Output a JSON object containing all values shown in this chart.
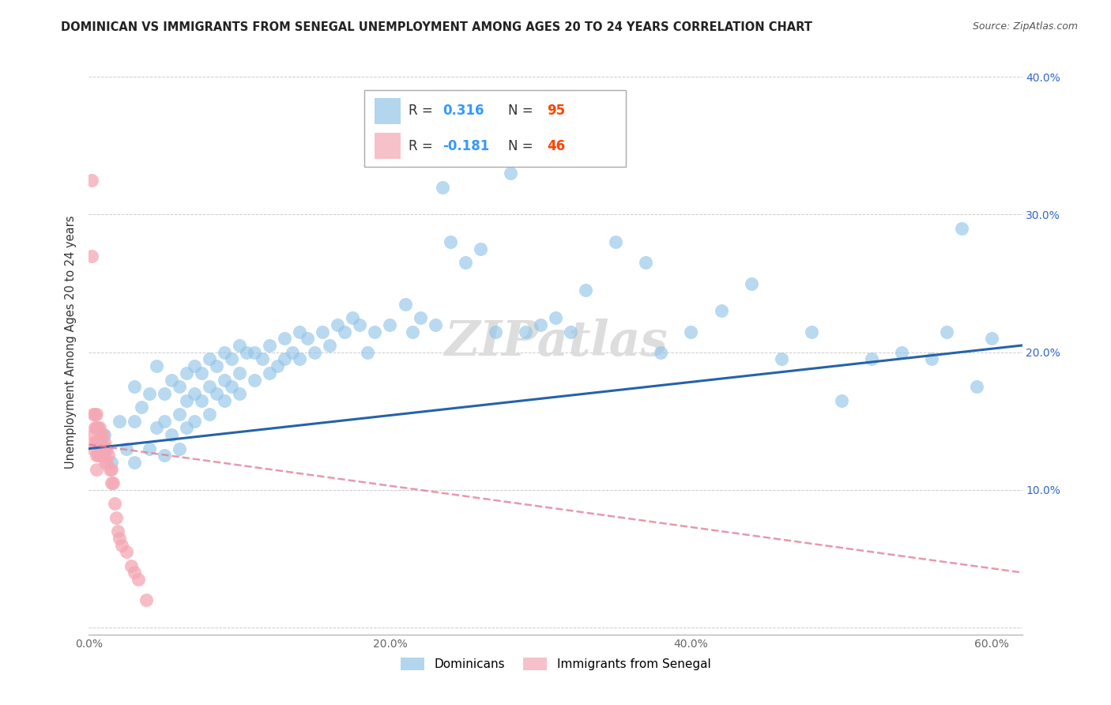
{
  "title": "DOMINICAN VS IMMIGRANTS FROM SENEGAL UNEMPLOYMENT AMONG AGES 20 TO 24 YEARS CORRELATION CHART",
  "source": "Source: ZipAtlas.com",
  "ylabel": "Unemployment Among Ages 20 to 24 years",
  "xlim": [
    0.0,
    0.62
  ],
  "ylim": [
    -0.005,
    0.42
  ],
  "xticks": [
    0.0,
    0.1,
    0.2,
    0.3,
    0.4,
    0.5,
    0.6
  ],
  "yticks": [
    0.0,
    0.1,
    0.2,
    0.3,
    0.4
  ],
  "xticklabels": [
    "0.0%",
    "",
    "20.0%",
    "",
    "40.0%",
    "",
    "60.0%"
  ],
  "yticklabels": [
    "",
    "",
    "",
    "",
    ""
  ],
  "right_yticks": [
    0.1,
    0.2,
    0.3,
    0.4
  ],
  "right_yticklabels": [
    "10.0%",
    "20.0%",
    "30.0%",
    "40.0%"
  ],
  "dominicans_R": 0.316,
  "dominicans_N": 95,
  "senegal_R": -0.181,
  "senegal_N": 46,
  "blue_color": "#92C5E8",
  "pink_color": "#F4A7B4",
  "blue_line_color": "#2563a8",
  "pink_line_color": "#E08098",
  "watermark": "ZIPatlas",
  "blue_scatter_x": [
    0.01,
    0.015,
    0.02,
    0.025,
    0.03,
    0.03,
    0.03,
    0.035,
    0.04,
    0.04,
    0.045,
    0.045,
    0.05,
    0.05,
    0.05,
    0.055,
    0.055,
    0.06,
    0.06,
    0.06,
    0.065,
    0.065,
    0.065,
    0.07,
    0.07,
    0.07,
    0.075,
    0.075,
    0.08,
    0.08,
    0.08,
    0.085,
    0.085,
    0.09,
    0.09,
    0.09,
    0.095,
    0.095,
    0.1,
    0.1,
    0.1,
    0.105,
    0.11,
    0.11,
    0.115,
    0.12,
    0.12,
    0.125,
    0.13,
    0.13,
    0.135,
    0.14,
    0.14,
    0.145,
    0.15,
    0.155,
    0.16,
    0.165,
    0.17,
    0.175,
    0.18,
    0.185,
    0.19,
    0.2,
    0.21,
    0.215,
    0.22,
    0.23,
    0.235,
    0.24,
    0.25,
    0.26,
    0.27,
    0.28,
    0.29,
    0.3,
    0.31,
    0.32,
    0.33,
    0.35,
    0.37,
    0.38,
    0.4,
    0.42,
    0.44,
    0.46,
    0.48,
    0.5,
    0.52,
    0.54,
    0.56,
    0.57,
    0.58,
    0.59,
    0.6
  ],
  "blue_scatter_y": [
    0.14,
    0.12,
    0.15,
    0.13,
    0.12,
    0.15,
    0.175,
    0.16,
    0.13,
    0.17,
    0.145,
    0.19,
    0.125,
    0.15,
    0.17,
    0.14,
    0.18,
    0.13,
    0.155,
    0.175,
    0.145,
    0.165,
    0.185,
    0.15,
    0.17,
    0.19,
    0.165,
    0.185,
    0.155,
    0.175,
    0.195,
    0.17,
    0.19,
    0.165,
    0.18,
    0.2,
    0.175,
    0.195,
    0.17,
    0.185,
    0.205,
    0.2,
    0.18,
    0.2,
    0.195,
    0.185,
    0.205,
    0.19,
    0.195,
    0.21,
    0.2,
    0.195,
    0.215,
    0.21,
    0.2,
    0.215,
    0.205,
    0.22,
    0.215,
    0.225,
    0.22,
    0.2,
    0.215,
    0.22,
    0.235,
    0.215,
    0.225,
    0.22,
    0.32,
    0.28,
    0.265,
    0.275,
    0.215,
    0.33,
    0.215,
    0.22,
    0.225,
    0.215,
    0.245,
    0.28,
    0.265,
    0.2,
    0.215,
    0.23,
    0.25,
    0.195,
    0.215,
    0.165,
    0.195,
    0.2,
    0.195,
    0.215,
    0.29,
    0.175,
    0.21
  ],
  "pink_scatter_x": [
    0.002,
    0.002,
    0.003,
    0.003,
    0.003,
    0.004,
    0.004,
    0.004,
    0.005,
    0.005,
    0.005,
    0.005,
    0.005,
    0.006,
    0.006,
    0.006,
    0.007,
    0.007,
    0.007,
    0.008,
    0.008,
    0.008,
    0.009,
    0.009,
    0.01,
    0.01,
    0.01,
    0.011,
    0.011,
    0.012,
    0.012,
    0.013,
    0.014,
    0.015,
    0.015,
    0.016,
    0.017,
    0.018,
    0.019,
    0.02,
    0.022,
    0.025,
    0.028,
    0.03,
    0.033,
    0.038
  ],
  "pink_scatter_y": [
    0.325,
    0.27,
    0.155,
    0.14,
    0.13,
    0.155,
    0.145,
    0.135,
    0.155,
    0.145,
    0.135,
    0.125,
    0.115,
    0.145,
    0.135,
    0.125,
    0.145,
    0.135,
    0.125,
    0.14,
    0.135,
    0.125,
    0.14,
    0.13,
    0.135,
    0.13,
    0.125,
    0.13,
    0.12,
    0.13,
    0.12,
    0.125,
    0.115,
    0.115,
    0.105,
    0.105,
    0.09,
    0.08,
    0.07,
    0.065,
    0.06,
    0.055,
    0.045,
    0.04,
    0.035,
    0.02
  ]
}
